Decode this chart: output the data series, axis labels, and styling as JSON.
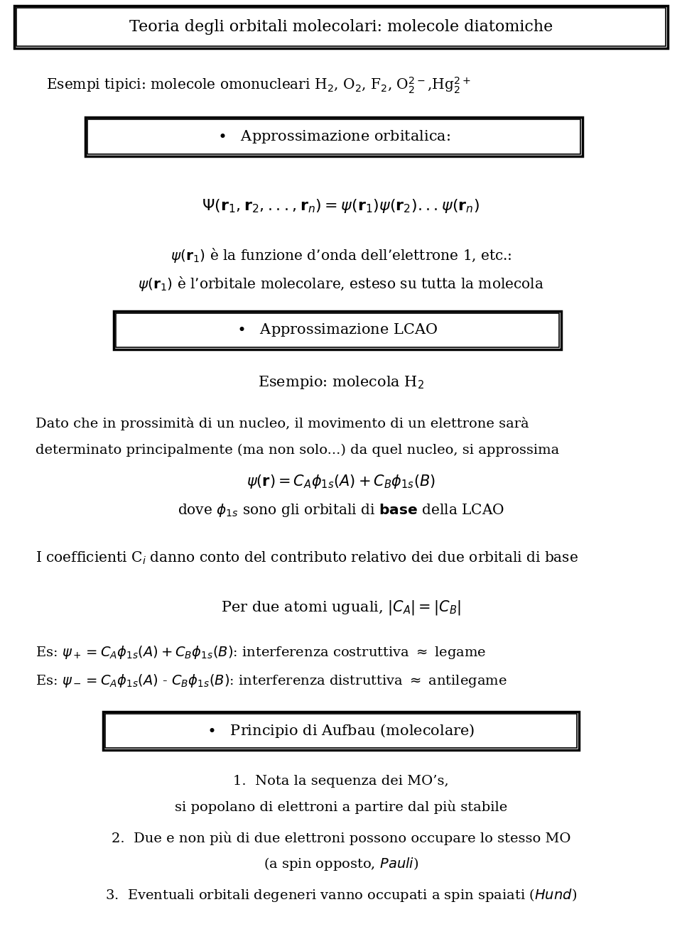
{
  "bg_color": "#ffffff",
  "text_color": "#000000",
  "fig_width": 9.6,
  "fig_height": 13.08,
  "title": "Teoria degli orbitali molecolari: molecole diatomiche",
  "line1": "Esempi tipici: molecole omonucleari H$_2$, O$_2$, F$_2$, O$_2^{2-}$,Hg$_2^{2+}$",
  "box1_text": "$\\bullet$   Approssimazione orbitalica:",
  "eq1": "$\\Psi(\\mathbf{r}_1,\\mathbf{r}_2,...,\\mathbf{r}_n) = \\psi(\\mathbf{r}_1)\\psi(\\mathbf{r}_2)...\\psi(\\mathbf{r}_n)$",
  "text1a": "$\\psi(\\mathbf{r}_1)$ è la funzione d’onda dell’elettrone 1, etc.:",
  "text1b": "$\\psi(\\mathbf{r}_1)$ è l’orbitale molecolare, esteso su tutta la molecola",
  "box2_text": "$\\bullet$   Approssimazione LCAO",
  "text2": "Esempio: molecola H$_2$",
  "text3a": "Dato che in prossimità di un nucleo, il movimento di un elettrone sarà",
  "text3b": "determinato principalmente (ma non solo...) da quel nucleo, si approssima",
  "eq2": "$\\psi(\\mathbf{r}) = C_A\\phi_{1s}(A) + C_B\\phi_{1s}(B)$",
  "text4": "dove $\\phi_{1s}$ sono gli orbitali di $\\mathbf{base}$ della LCAO",
  "text5": "I coefficienti C$_i$ danno conto del contributo relativo dei due orbitali di base",
  "text6": "Per due atomi uguali, $|C_A| = |C_B|$",
  "text7a": "Es: $\\psi_+ = C_A\\phi_{1s}(A) + C_B\\phi_{1s}(B)$: interferenza costruttiva $\\approx$ legame",
  "text7b": "Es: $\\psi_- = C_A\\phi_{1s}(A)$ - $C_B\\phi_{1s}(B)$: interferenza distruttiva $\\approx$ antilegame",
  "box3_text": "$\\bullet$   Principio di Aufbau (molecolare)",
  "aufbau1a": "1.  Nota la sequenza dei MO’s,",
  "aufbau1b": "si popolano di elettroni a partire dal più stabile",
  "aufbau2": "2.  Due e non più di due elettroni possono occupare lo stesso MO",
  "aufbau2b": "(a spin opposto, $\\it{Pauli}$)",
  "aufbau3": "3.  Eventuali orbitali degeneri vanno occupati a spin spaiati ($\\it{Hund}$)"
}
